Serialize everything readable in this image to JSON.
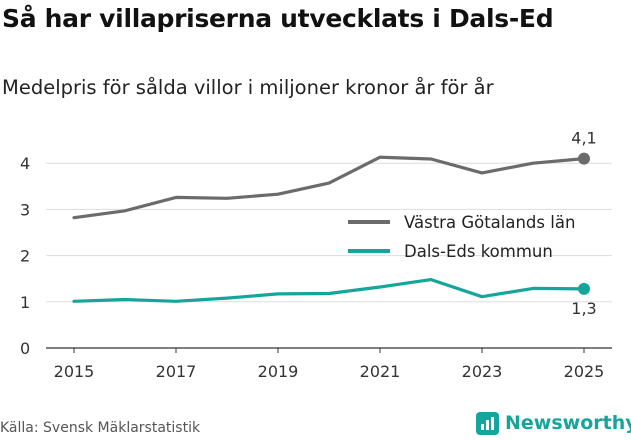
{
  "title": "Så har villapriserna utvecklats i Dals-Ed",
  "subtitle": "Medelpris för sålda villor i miljoner kronor år för år",
  "source": "Källa: Svensk Mäklarstatistik",
  "brand": "Newsworthy",
  "colors": {
    "gotaland": "#6b6b6b",
    "dalsed": "#16a59a",
    "grid": "#dddddd"
  },
  "chart_data": {
    "type": "line",
    "title": "Så har villapriserna utvecklats i Dals-Ed",
    "subtitle": "Medelpris för sålda villor i miljoner kronor år för år",
    "xlabel": "",
    "ylabel": "",
    "x": [
      2015,
      2016,
      2017,
      2018,
      2019,
      2020,
      2021,
      2022,
      2023,
      2024,
      2025
    ],
    "ylim": [
      0,
      4.4
    ],
    "yticks": [
      0,
      1,
      2,
      3,
      4
    ],
    "xticks": [
      2015,
      2017,
      2019,
      2021,
      2023,
      2025
    ],
    "grid": true,
    "legend_position": "right",
    "series": [
      {
        "name": "Västra Götalands län",
        "color": "#6b6b6b",
        "values": [
          2.82,
          2.97,
          3.26,
          3.24,
          3.33,
          3.57,
          4.13,
          4.09,
          3.79,
          4.0,
          4.1
        ]
      },
      {
        "name": "Dals-Eds kommun",
        "color": "#16a59a",
        "values": [
          1.01,
          1.05,
          1.01,
          1.08,
          1.17,
          1.18,
          1.32,
          1.48,
          1.11,
          1.29,
          1.28
        ]
      }
    ],
    "annotations": [
      {
        "series": 0,
        "label": "4,1"
      },
      {
        "series": 1,
        "label": "1,3"
      }
    ]
  }
}
